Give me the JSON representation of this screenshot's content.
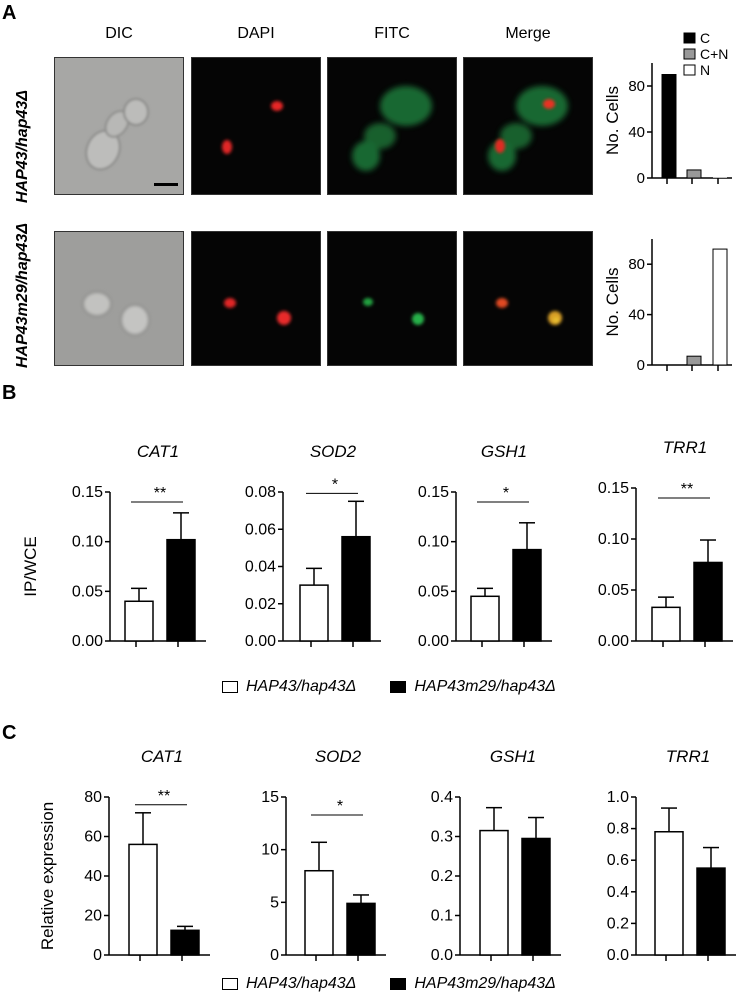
{
  "panels": [
    "A",
    "B",
    "C"
  ],
  "microscopy": {
    "columns": [
      "DIC",
      "DAPI",
      "FITC",
      "Merge"
    ],
    "rows": [
      "HAP43/hap43Δ",
      "HAP43m29/hap43Δ"
    ]
  },
  "legend": {
    "white_label": "HAP43/hap43Δ",
    "black_label": "HAP43m29/hap43Δ"
  },
  "chart_data": [
    {
      "id": "A-top",
      "type": "bar",
      "ylabel": "No. Cells",
      "ylim": [
        0,
        100
      ],
      "yticks": [
        0,
        40,
        80
      ],
      "legend": [
        "C",
        "C+N",
        "N"
      ],
      "categories": [
        "C",
        "C+N",
        "N"
      ],
      "values": [
        90,
        7,
        0
      ],
      "colors": [
        "#000000",
        "#999999",
        "#ffffff"
      ]
    },
    {
      "id": "A-bottom",
      "type": "bar",
      "ylabel": "No. Cells",
      "ylim": [
        0,
        100
      ],
      "yticks": [
        0,
        40,
        80
      ],
      "categories": [
        "C",
        "C+N",
        "N"
      ],
      "values": [
        0,
        7,
        92
      ],
      "colors": [
        "#000000",
        "#999999",
        "#ffffff"
      ]
    },
    {
      "id": "B-CAT1",
      "type": "bar",
      "title": "CAT1",
      "ylabel": "IP/WCE",
      "ylim": [
        0,
        0.15
      ],
      "yticks": [
        "0.00",
        "0.05",
        "0.10",
        "0.15"
      ],
      "series": [
        {
          "name": "HAP43/hap43Δ",
          "values": [
            0.04
          ],
          "err": [
            0.013
          ]
        },
        {
          "name": "HAP43m29/hap43Δ",
          "values": [
            0.102
          ],
          "err": [
            0.027
          ]
        }
      ],
      "significance": "**"
    },
    {
      "id": "B-SOD2",
      "type": "bar",
      "title": "SOD2",
      "ylim": [
        0,
        0.08
      ],
      "yticks": [
        "0.00",
        "0.02",
        "0.04",
        "0.06",
        "0.08"
      ],
      "series": [
        {
          "name": "HAP43/hap43Δ",
          "values": [
            0.03
          ],
          "err": [
            0.009
          ]
        },
        {
          "name": "HAP43m29/hap43Δ",
          "values": [
            0.056
          ],
          "err": [
            0.019
          ]
        }
      ],
      "significance": "*"
    },
    {
      "id": "B-GSH1",
      "type": "bar",
      "title": "GSH1",
      "ylim": [
        0,
        0.15
      ],
      "yticks": [
        "0.00",
        "0.05",
        "0.10",
        "0.15"
      ],
      "series": [
        {
          "name": "HAP43/hap43Δ",
          "values": [
            0.045
          ],
          "err": [
            0.008
          ]
        },
        {
          "name": "HAP43m29/hap43Δ",
          "values": [
            0.092
          ],
          "err": [
            0.027
          ]
        }
      ],
      "significance": "*"
    },
    {
      "id": "B-TRR1",
      "type": "bar",
      "title": "TRR1",
      "ylim": [
        0,
        0.15
      ],
      "yticks": [
        "0.00",
        "0.05",
        "0.10",
        "0.15"
      ],
      "series": [
        {
          "name": "HAP43/hap43Δ",
          "values": [
            0.033
          ],
          "err": [
            0.01
          ]
        },
        {
          "name": "HAP43m29/hap43Δ",
          "values": [
            0.077
          ],
          "err": [
            0.022
          ]
        }
      ],
      "significance": "**"
    },
    {
      "id": "C-CAT1",
      "type": "bar",
      "title": "CAT1",
      "ylabel": "Relative expression",
      "ylim": [
        0,
        80
      ],
      "yticks": [
        "0",
        "20",
        "40",
        "60",
        "80"
      ],
      "series": [
        {
          "name": "HAP43/hap43Δ",
          "values": [
            56
          ],
          "err": [
            16
          ]
        },
        {
          "name": "HAP43m29/hap43Δ",
          "values": [
            12.5
          ],
          "err": [
            2
          ]
        }
      ],
      "significance": "**"
    },
    {
      "id": "C-SOD2",
      "type": "bar",
      "title": "SOD2",
      "ylim": [
        0,
        15
      ],
      "yticks": [
        "0",
        "5",
        "10",
        "15"
      ],
      "series": [
        {
          "name": "HAP43/hap43Δ",
          "values": [
            8
          ],
          "err": [
            2.7
          ]
        },
        {
          "name": "HAP43m29/hap43Δ",
          "values": [
            4.9
          ],
          "err": [
            0.8
          ]
        }
      ],
      "significance": "*"
    },
    {
      "id": "C-GSH1",
      "type": "bar",
      "title": "GSH1",
      "ylim": [
        0,
        0.4
      ],
      "yticks": [
        "0.0",
        "0.1",
        "0.2",
        "0.3",
        "0.4"
      ],
      "series": [
        {
          "name": "HAP43/hap43Δ",
          "values": [
            0.315
          ],
          "err": [
            0.058
          ]
        },
        {
          "name": "HAP43m29/hap43Δ",
          "values": [
            0.295
          ],
          "err": [
            0.053
          ]
        }
      ],
      "significance": ""
    },
    {
      "id": "C-TRR1",
      "type": "bar",
      "title": "TRR1",
      "ylim": [
        0,
        1.0
      ],
      "yticks": [
        "0.0",
        "0.2",
        "0.4",
        "0.6",
        "0.8",
        "1.0"
      ],
      "series": [
        {
          "name": "HAP43/hap43Δ",
          "values": [
            0.78
          ],
          "err": [
            0.15
          ]
        },
        {
          "name": "HAP43m29/hap43Δ",
          "values": [
            0.55
          ],
          "err": [
            0.13
          ]
        }
      ],
      "significance": ""
    }
  ]
}
